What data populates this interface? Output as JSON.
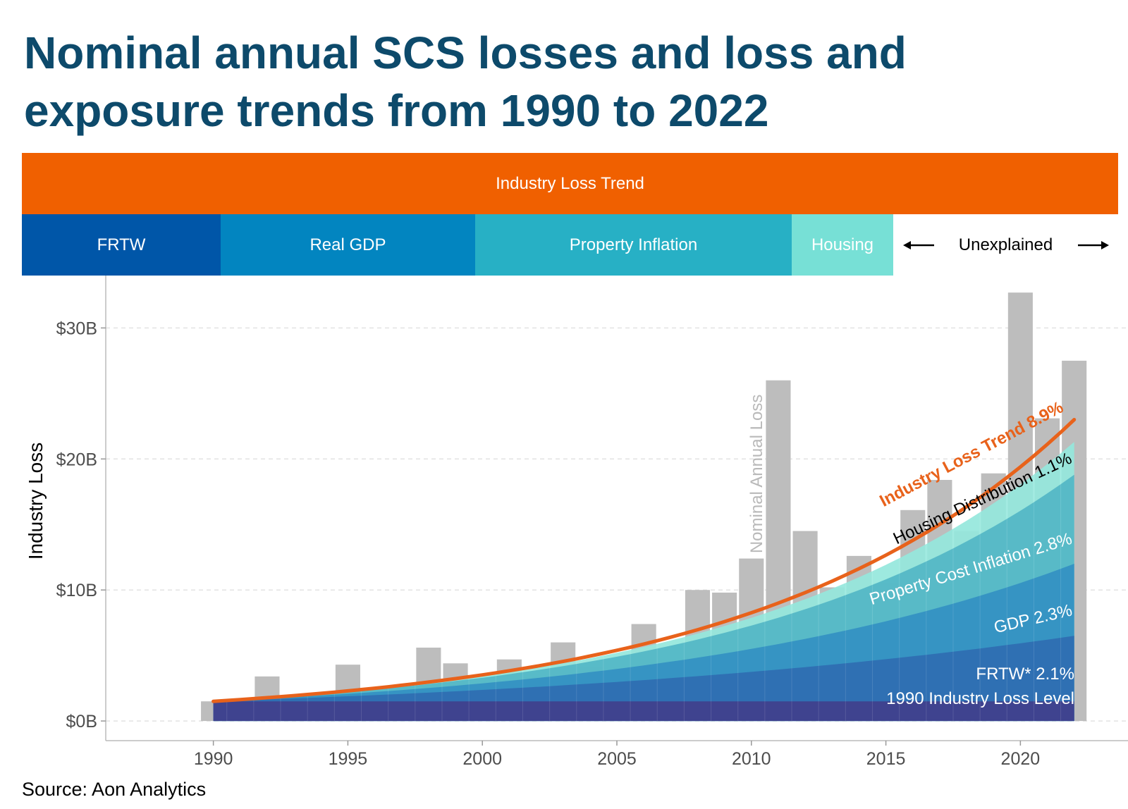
{
  "header": {
    "title_line1": "Nominal annual SCS losses and loss and",
    "title_line2": "exposure trends from 1990 to 2022"
  },
  "bands": {
    "top": "Industry Loss Trend",
    "frtw": "FRTW",
    "real_gdp": "Real GDP",
    "property_inflation": "Property Inflation",
    "housing": "Housing",
    "unexplained": "Unexplained"
  },
  "colors": {
    "title": "#0d4a6b",
    "industry_loss_trend": "#f06000",
    "frtw": "#0056a8",
    "real_gdp": "#0285c0",
    "property_inflation": "#27b0c5",
    "housing": "#77e0d6",
    "bars": "#bdbdbd",
    "base_level": "#3f438f"
  },
  "source": "Source: Aon Analytics",
  "chart_data": {
    "type": "bar",
    "ylabel": "Industry Loss",
    "xlabel": "",
    "xlim": [
      1986,
      2024
    ],
    "ylim": [
      -1.5,
      34
    ],
    "y_ticks": [
      0,
      10,
      20,
      30
    ],
    "y_tick_labels": [
      "$0B",
      "$10B",
      "$20B",
      "$30B"
    ],
    "x_ticks": [
      1990,
      1995,
      2000,
      2005,
      2010,
      2015,
      2020
    ],
    "x_tick_labels": [
      "1990",
      "1995",
      "2000",
      "2005",
      "2010",
      "2015",
      "2020"
    ],
    "grid": true,
    "bars": {
      "name": "Nominal Annual Loss",
      "x": [
        1990,
        1991,
        1992,
        1993,
        1994,
        1995,
        1996,
        1997,
        1998,
        1999,
        2000,
        2001,
        2002,
        2003,
        2004,
        2005,
        2006,
        2007,
        2008,
        2009,
        2010,
        2011,
        2012,
        2013,
        2014,
        2015,
        2016,
        2017,
        2018,
        2019,
        2020,
        2021,
        2022
      ],
      "values": [
        1.5,
        1.0,
        3.4,
        1.1,
        1.9,
        4.3,
        2.1,
        1.9,
        5.6,
        4.4,
        1.7,
        4.7,
        3.4,
        6.0,
        4.1,
        3.4,
        7.4,
        4.5,
        10.0,
        9.8,
        12.4,
        26.0,
        14.5,
        10.2,
        12.6,
        10.5,
        16.1,
        18.4,
        14.5,
        18.9,
        32.7,
        23.1,
        27.5
      ]
    },
    "layers": [
      {
        "name": "1990 Industry Loss Level",
        "end_value": 1.5
      },
      {
        "name": "FRTW* 2.1%",
        "end_value": 6.5
      },
      {
        "name": "GDP 2.3%",
        "end_value": 12.0
      },
      {
        "name": "Property Cost Inflation 2.8%",
        "end_value": 18.8
      },
      {
        "name": "Housing Distribution 1.1%",
        "end_value": 21.3
      }
    ],
    "trend_line": {
      "name": "Industry Loss Trend 8.9%",
      "start_value": 1.5,
      "end_value": 23.0
    },
    "layer_years": [
      1990,
      2022
    ],
    "layer_colors": [
      "#3f438f",
      "#2f6db2",
      "#3390c2",
      "#52b6c6",
      "#95e7dc"
    ],
    "trend_color": "#e8621b"
  }
}
